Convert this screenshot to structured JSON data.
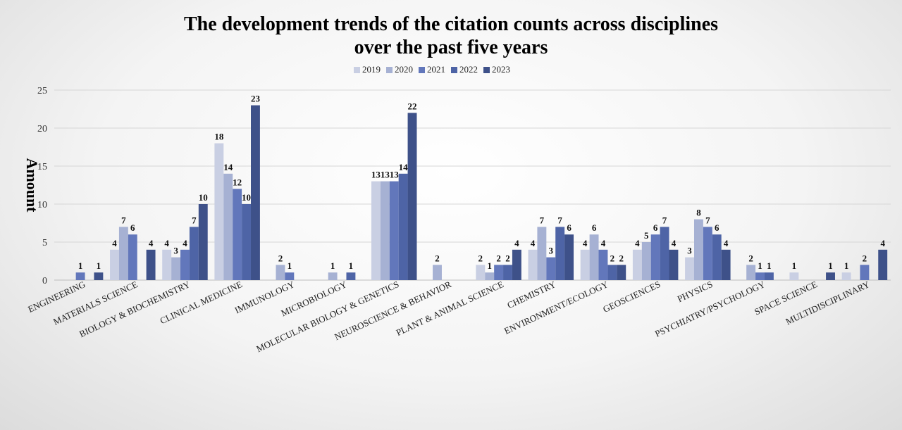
{
  "chart_data": {
    "type": "bar",
    "title_lines": [
      "The development trends of the citation counts across disciplines",
      "over the past five years"
    ],
    "xlabel": "",
    "ylabel": "Amount",
    "ylim": [
      0,
      25
    ],
    "yticks": [
      0,
      5,
      10,
      15,
      20,
      25
    ],
    "grid": true,
    "legend_position": "top-center",
    "categories": [
      "ENGINEERING",
      "MATERIALS  SCIENCE",
      "BIOLOGY & BIOCHEMISTRY",
      "CLINICAL MEDICINE",
      "IMMUNOLOGY",
      "MICROBIOLOGY",
      "MOLECULAR BIOLOGY  & GENETICS",
      "NEUROSCIENCE & BEHAVIOR",
      "PLANT & ANIMAL SCIENCE",
      "CHEMISTRY",
      "ENVIRONMENT/ECOLOGY",
      "GEOSCIENCES",
      "PHYSICS",
      "PSYCHIATRY/PSYCHOLOGY",
      "SPACE SCIENCE",
      "MULTIDISCIPLINARY"
    ],
    "series": [
      {
        "name": "2019",
        "color": "#c9cfe3",
        "values": [
          0,
          4,
          4,
          18,
          0,
          0,
          13,
          0,
          2,
          4,
          4,
          4,
          3,
          0,
          1,
          1
        ]
      },
      {
        "name": "2020",
        "color": "#a6b1d3",
        "values": [
          0,
          7,
          3,
          14,
          2,
          1,
          13,
          2,
          1,
          7,
          6,
          5,
          8,
          2,
          0,
          0
        ]
      },
      {
        "name": "2021",
        "color": "#6277bb",
        "values": [
          1,
          6,
          4,
          12,
          1,
          0,
          13,
          0,
          2,
          3,
          4,
          6,
          7,
          1,
          0,
          2
        ]
      },
      {
        "name": "2022",
        "color": "#4e64a6",
        "values": [
          0,
          0,
          7,
          10,
          0,
          1,
          14,
          0,
          2,
          7,
          2,
          7,
          6,
          1,
          0,
          0
        ]
      },
      {
        "name": "2023",
        "color": "#3e5189",
        "values": [
          1,
          4,
          10,
          23,
          0,
          0,
          22,
          0,
          4,
          6,
          2,
          4,
          4,
          0,
          1,
          4
        ]
      }
    ]
  }
}
